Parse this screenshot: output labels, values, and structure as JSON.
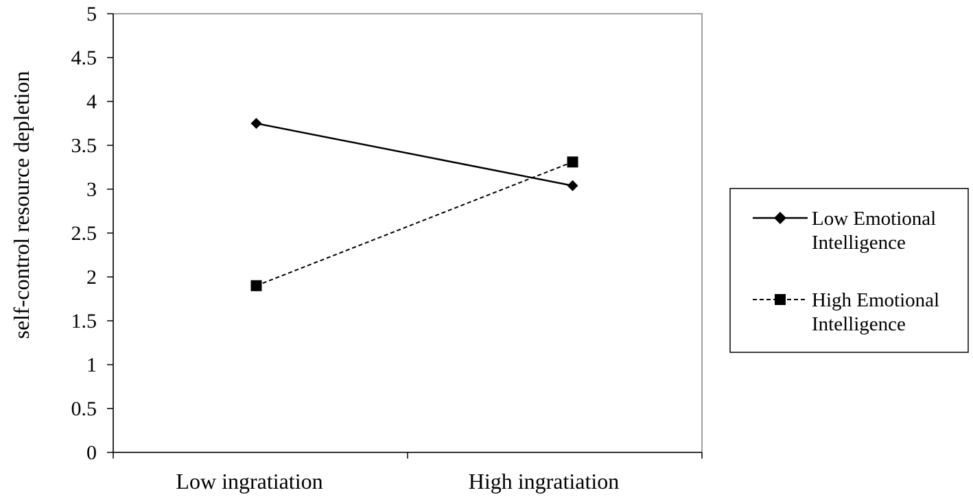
{
  "chart_data": {
    "type": "line",
    "title": "",
    "xlabel": "",
    "ylabel": "self-control resource depletion",
    "categories": [
      "Low ingratiation",
      "High ingratiation"
    ],
    "ylim": [
      0,
      5
    ],
    "yticks": [
      "0",
      "0.5",
      "1",
      "1.5",
      "2",
      "2.5",
      "3",
      "3.5",
      "4",
      "4.5",
      "5"
    ],
    "grid": false,
    "legend_position": "right",
    "series": [
      {
        "name_lines": [
          "Low Emotional",
          "Intelligence"
        ],
        "values": [
          3.75,
          3.04
        ],
        "marker": "diamond",
        "line_style": "solid",
        "color": "#000000"
      },
      {
        "name_lines": [
          "High Emotional",
          "Intelligence"
        ],
        "values": [
          1.9,
          3.31
        ],
        "marker": "square",
        "line_style": "dashed",
        "color": "#000000"
      }
    ]
  },
  "colors": {
    "axis": "#000000",
    "frame": "#808080",
    "background": "#ffffff"
  }
}
